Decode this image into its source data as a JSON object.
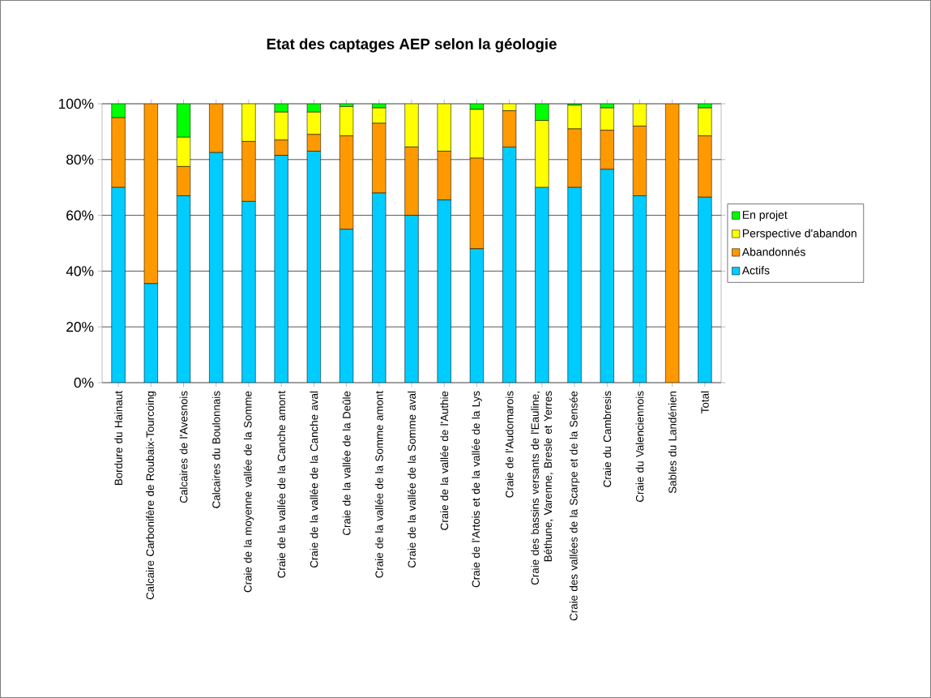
{
  "chart_data": {
    "type": "bar",
    "title": "Etat des captages AEP selon la géologie",
    "stacked": true,
    "categories": [
      "Bordure du Hainaut",
      "Calcaire Carbonifère de Roubaix-Tourcoing",
      "Calcaires de l'Avesnois",
      "Calcaires du Boulonnais",
      "Craie de la moyenne vallée de la Somme",
      "Craie de la vallée de la Canche amont",
      "Craie de la vallée de la Canche aval",
      "Craie de la vallée de la Deûle",
      "Craie de la vallée de la Somme amont",
      "Craie de la vallée de la Somme aval",
      "Craie de la vallée de l'Authie",
      "Craie de l'Artois et de la vallée de la Lys",
      "Craie de l'Audomarois",
      "Craie des bassins versants de l'Eauline, Béthune, Varenne, Bresle et Yerres",
      "Craie des vallées de la Scarpe et de la Sensée",
      "Craie du Cambresis",
      "Craie du Valenciennois",
      "Sables du Landénien",
      "Total"
    ],
    "series": [
      {
        "name": "Actifs",
        "color": "#00ccff",
        "values": [
          70,
          35.5,
          67,
          82.5,
          65,
          81.5,
          83,
          55,
          68,
          60,
          65.5,
          48,
          84.5,
          70,
          70,
          76.5,
          67,
          0,
          66.5
        ]
      },
      {
        "name": "Abandonnés",
        "color": "#ff9900",
        "values": [
          25,
          64.5,
          10.5,
          17.5,
          21.5,
          5.5,
          6,
          33.5,
          25,
          24.5,
          17.5,
          32.5,
          13,
          0,
          21,
          14,
          25,
          100,
          22
        ]
      },
      {
        "name": "Perspective d'abandon",
        "color": "#ffff00",
        "values": [
          0,
          0,
          10.5,
          0,
          13.5,
          10,
          8,
          10.5,
          5.5,
          15.5,
          17,
          17.5,
          2.5,
          24,
          8.5,
          8,
          8,
          0,
          10
        ]
      },
      {
        "name": "En projet",
        "color": "#00ff00",
        "values": [
          5,
          0,
          12,
          0,
          0,
          3,
          3,
          1,
          1.5,
          0,
          0,
          2,
          0,
          6,
          0.5,
          1.5,
          0,
          0,
          1.5
        ]
      }
    ],
    "ylim": [
      0,
      100
    ],
    "yticks": [
      {
        "value": 0,
        "label": "0%"
      },
      {
        "value": 20,
        "label": "20%"
      },
      {
        "value": 40,
        "label": "40%"
      },
      {
        "value": 60,
        "label": "60%"
      },
      {
        "value": 80,
        "label": "80%"
      },
      {
        "value": 100,
        "label": "100%"
      }
    ],
    "grid": "y",
    "legend": "right"
  }
}
